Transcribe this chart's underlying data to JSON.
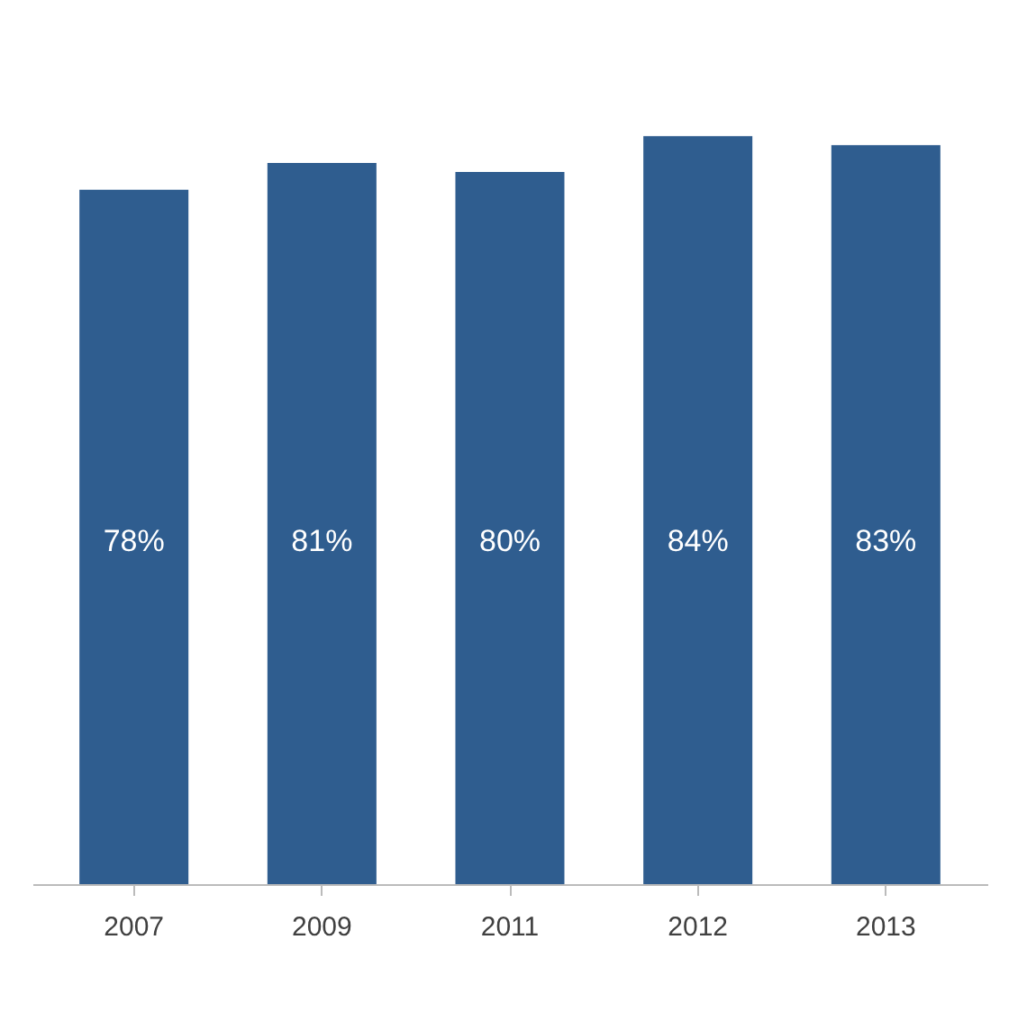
{
  "chart_data": {
    "type": "bar",
    "categories": [
      "2007",
      "2009",
      "2011",
      "2012",
      "2013"
    ],
    "values": [
      78,
      81,
      80,
      84,
      83
    ],
    "color": "#2f5d8f",
    "data_labels": true,
    "value_labels": [
      "78%",
      "81%",
      "80%",
      "84%",
      "83%"
    ]
  }
}
